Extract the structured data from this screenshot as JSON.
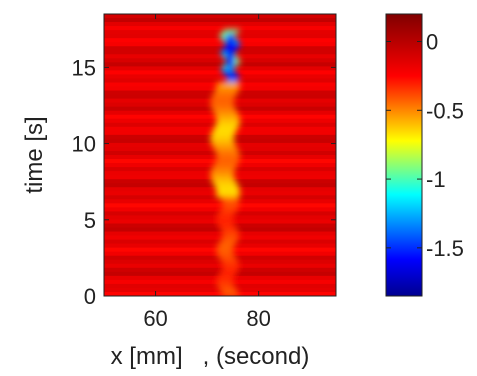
{
  "chart_data": {
    "type": "heatmap",
    "xlabel": "x [mm]   , (second)",
    "ylabel": "time [s]",
    "x_ticks": [
      60,
      80
    ],
    "y_ticks": [
      0,
      5,
      10,
      15
    ],
    "xlim": [
      50,
      95
    ],
    "ylim": [
      0,
      18.5
    ],
    "colorbar": {
      "ticks": [
        0,
        -0.5,
        -1,
        -1.5
      ],
      "tick_labels": [
        "0",
        "-0.5",
        "-1",
        "-1.5"
      ],
      "range": [
        -1.85,
        0.2
      ],
      "colormap": "jet"
    },
    "background_value": 0,
    "features": [
      {
        "description_value": "deep trough core",
        "x": 74.5,
        "t_start": 14,
        "t_end": 17.5,
        "min_value": -1.6
      },
      {
        "description_value": "moderate trough",
        "x": 73.5,
        "t_start": 6.5,
        "t_end": 14,
        "min_value": -0.5
      },
      {
        "description_value": "weak tail",
        "x": 74,
        "t_start": 0,
        "t_end": 6.5,
        "min_value": -0.25
      }
    ]
  }
}
